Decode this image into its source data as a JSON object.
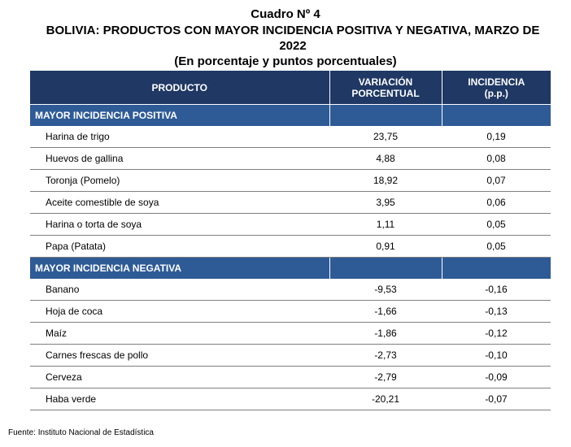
{
  "header": {
    "title": "Cuadro Nº 4",
    "subtitle": "BOLIVIA: PRODUCTOS CON MAYOR INCIDENCIA POSITIVA Y NEGATIVA,  MARZO DE 2022",
    "units": "(En porcentaje y puntos porcentuales)"
  },
  "table": {
    "columns": [
      "PRODUCTO",
      "VARIACIÓN PORCENTUAL",
      "INCIDENCIA (p.p.)"
    ],
    "col2_line1": "VARIACIÓN",
    "col2_line2": "PORCENTUAL",
    "col3_line1": "INCIDENCIA",
    "col3_line2": "(p.p.)",
    "positive": {
      "label": "MAYOR INCIDENCIA POSITIVA",
      "rows": [
        {
          "producto": "Harina de trigo",
          "variacion": "23,75",
          "incidencia": "0,19"
        },
        {
          "producto": "Huevos de gallina",
          "variacion": "4,88",
          "incidencia": "0,08"
        },
        {
          "producto": "Toronja (Pomelo)",
          "variacion": "18,92",
          "incidencia": "0,07"
        },
        {
          "producto": "Aceite comestible de soya",
          "variacion": "3,95",
          "incidencia": "0,06"
        },
        {
          "producto": "Harina o torta de soya",
          "variacion": "1,11",
          "incidencia": "0,05"
        },
        {
          "producto": "Papa (Patata)",
          "variacion": "0,91",
          "incidencia": "0,05"
        }
      ]
    },
    "negative": {
      "label": "MAYOR INCIDENCIA NEGATIVA",
      "rows": [
        {
          "producto": "Banano",
          "variacion": "-9,53",
          "incidencia": "-0,16"
        },
        {
          "producto": "Hoja de coca",
          "variacion": "-1,66",
          "incidencia": "-0,13"
        },
        {
          "producto": "Maíz",
          "variacion": "-1,86",
          "incidencia": "-0,12"
        },
        {
          "producto": "Carnes frescas de pollo",
          "variacion": "-2,73",
          "incidencia": "-0,10"
        },
        {
          "producto": "Cerveza",
          "variacion": "-2,79",
          "incidencia": "-0,09"
        },
        {
          "producto": "Haba verde",
          "variacion": "-20,21",
          "incidencia": "-0,07"
        }
      ]
    }
  },
  "source": "Fuente: Instituto Nacional de Estadística",
  "colors": {
    "header_bg": "#1f3864",
    "section_bg": "#2e5b96",
    "row_border": "#7f7f7f"
  }
}
